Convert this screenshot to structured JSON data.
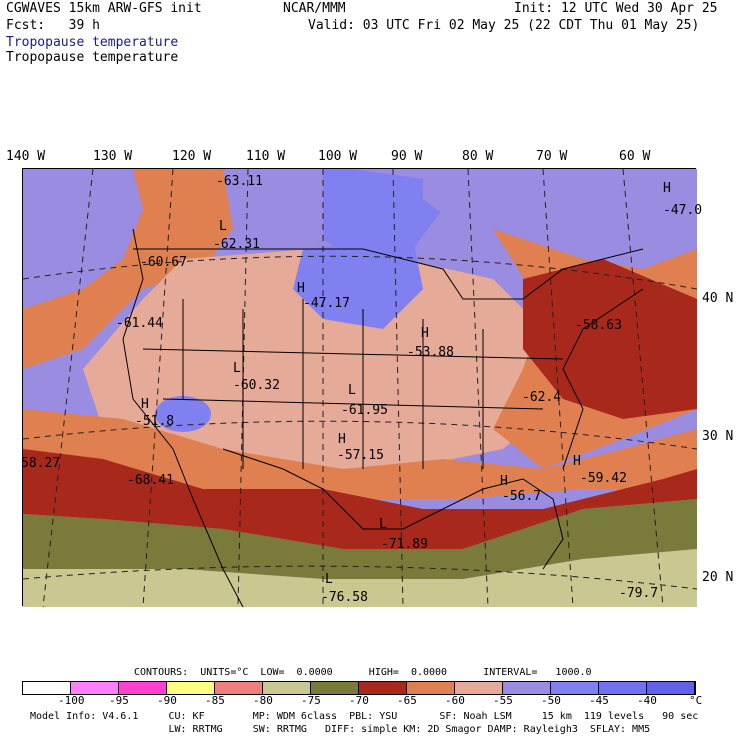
{
  "header": {
    "model": "CGWAVES 15km ARW-GFS init",
    "org": "NCAR/MMM",
    "init": "Init: 12 UTC Wed 30 Apr 25",
    "fcst": "Fcst:   39 h",
    "valid": "Valid: 03 UTC Fri 02 May 25 (22 CDT Thu 01 May 25)",
    "field1": "Tropopause temperature",
    "field2": "Tropopause temperature"
  },
  "longitudes": [
    "140 W",
    "130 W",
    "120 W",
    "110 W",
    "100 W",
    "90 W",
    "80 W",
    "70 W",
    "60 W"
  ],
  "latitudes": [
    "40 N",
    "30 N",
    "20 N"
  ],
  "map_labels": [
    {
      "text": "-63.11",
      "marker": ""
    },
    {
      "text": "-62.31",
      "marker": "L"
    },
    {
      "text": "-60.67",
      "marker": ""
    },
    {
      "text": "-47.17",
      "marker": "H"
    },
    {
      "text": "-61.44",
      "marker": ""
    },
    {
      "text": "-53.88",
      "marker": "H"
    },
    {
      "text": "-58.63",
      "marker": ""
    },
    {
      "text": "-60.32",
      "marker": "L"
    },
    {
      "text": "-61.95",
      "marker": "L"
    },
    {
      "text": "-51.8",
      "marker": "H"
    },
    {
      "text": "-62.4",
      "marker": ""
    },
    {
      "text": "-57.15",
      "marker": "H"
    },
    {
      "text": "58.27",
      "marker": ""
    },
    {
      "text": "-68.41",
      "marker": ""
    },
    {
      "text": "-56.7",
      "marker": "H"
    },
    {
      "text": "-59.42",
      "marker": "H"
    },
    {
      "text": "-71.89",
      "marker": "L"
    },
    {
      "text": "-76.58",
      "marker": "L"
    },
    {
      "text": "-79.7",
      "marker": ""
    },
    {
      "text": "-47.0",
      "marker": "H"
    }
  ],
  "contours": {
    "text": "CONTOURS:  UNITS=°C  LOW=  0.0000      HIGH=  0.0000      INTERVAL=   1000.0"
  },
  "colorbar": {
    "colors": [
      "#ffffff",
      "#ff80ff",
      "#ff40d0",
      "#ffff80",
      "#f08080",
      "#c8c890",
      "#7a7a3a",
      "#a8281c",
      "#e08050",
      "#e6aa98",
      "#9a8ce0",
      "#8080f0",
      "#7070f0",
      "#6060e8"
    ],
    "ticks": [
      "-100",
      "-95",
      "-90",
      "-85",
      "-80",
      "-75",
      "-70",
      "-65",
      "-60",
      "-55",
      "-50",
      "-45",
      "-40",
      "°C"
    ]
  },
  "model_info": {
    "line1": "Model Info: V4.6.1     CU: KF        MP: WDM 6class  PBL: YSU       SF: Noah LSM     15 km  119 levels   90 sec",
    "line2": "                       LW: RRTMG     SW: RRTMG   DIFF: simple KM: 2D Smagor DAMP: Rayleigh3  SFLAY: MM5"
  }
}
